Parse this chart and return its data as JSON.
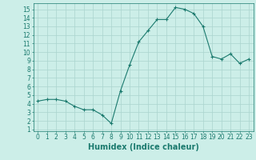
{
  "x": [
    0,
    1,
    2,
    3,
    4,
    5,
    6,
    7,
    8,
    9,
    10,
    11,
    12,
    13,
    14,
    15,
    16,
    17,
    18,
    19,
    20,
    21,
    22,
    23
  ],
  "y": [
    4.3,
    4.5,
    4.5,
    4.3,
    3.7,
    3.3,
    3.3,
    2.7,
    1.7,
    5.5,
    8.5,
    11.2,
    12.5,
    13.8,
    13.8,
    15.2,
    15.0,
    14.5,
    13.0,
    9.5,
    9.2,
    9.8,
    8.7,
    9.2
  ],
  "xlabel": "Humidex (Indice chaleur)",
  "xlim": [
    -0.5,
    23.5
  ],
  "ylim": [
    0.8,
    15.7
  ],
  "yticks": [
    1,
    2,
    3,
    4,
    5,
    6,
    7,
    8,
    9,
    10,
    11,
    12,
    13,
    14,
    15
  ],
  "xticks": [
    0,
    1,
    2,
    3,
    4,
    5,
    6,
    7,
    8,
    9,
    10,
    11,
    12,
    13,
    14,
    15,
    16,
    17,
    18,
    19,
    20,
    21,
    22,
    23
  ],
  "line_color": "#1b7a6e",
  "bg_color": "#cceee8",
  "grid_color": "#aad4ce",
  "label_color": "#1b7a6e",
  "xlabel_fontsize": 7,
  "tick_fontsize": 5.5
}
